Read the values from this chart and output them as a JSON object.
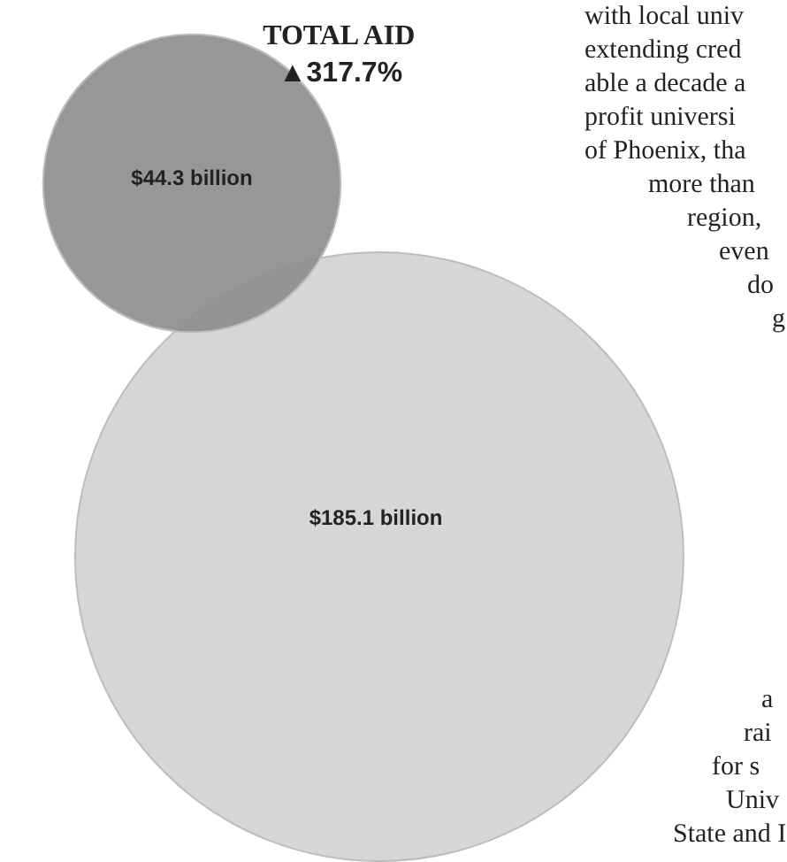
{
  "chart_data": {
    "type": "other",
    "title": "TOTAL AID",
    "subtitle": "▲317.7%",
    "values": [
      44.3,
      185.1
    ],
    "value_labels": [
      "$44.3 billion",
      "$185.1 billion"
    ],
    "colors": [
      "#8e8e8e",
      "#d6d6d6"
    ],
    "annotations": [
      "with local univ",
      "extending cred",
      "able a decade a",
      "profit universi",
      "of Phoenix, tha",
      "more than",
      "region,",
      "even",
      "do",
      "g",
      "a",
      "rai",
      "for s",
      "Univ",
      "State and I"
    ]
  }
}
